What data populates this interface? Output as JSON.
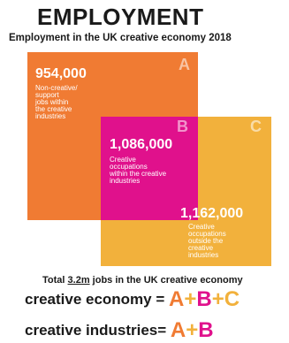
{
  "header": {
    "title": "EMPLOYMENT",
    "subtitle": "Employment in the UK creative economy 2018"
  },
  "segments": {
    "a": {
      "letter": "A",
      "value": "954,000",
      "description": "Non-creative/\nsupport\njobs within\nthe creative\nindustries",
      "color": "#f07b33"
    },
    "b": {
      "letter": "B",
      "value": "1,086,000",
      "description": "Creative\noccupations\nwithin the creative\nindustries",
      "color": "#e0118c"
    },
    "c": {
      "letter": "C",
      "value": "1,162,000",
      "description": "Creative\noccupations\noutside the\ncreative\nindustries",
      "color": "#f2b13c"
    }
  },
  "total": {
    "prefix": "Total",
    "amount": "3.2m",
    "suffix": "jobs in the UK creative economy"
  },
  "formulas": {
    "economy": {
      "label": "creative economy",
      "equals": "=",
      "plus": "+",
      "a": "A",
      "b": "B",
      "c": "C"
    },
    "industries": {
      "label": "creative industries",
      "equals": "=",
      "plus": "+",
      "a": "A",
      "b": "B"
    }
  }
}
